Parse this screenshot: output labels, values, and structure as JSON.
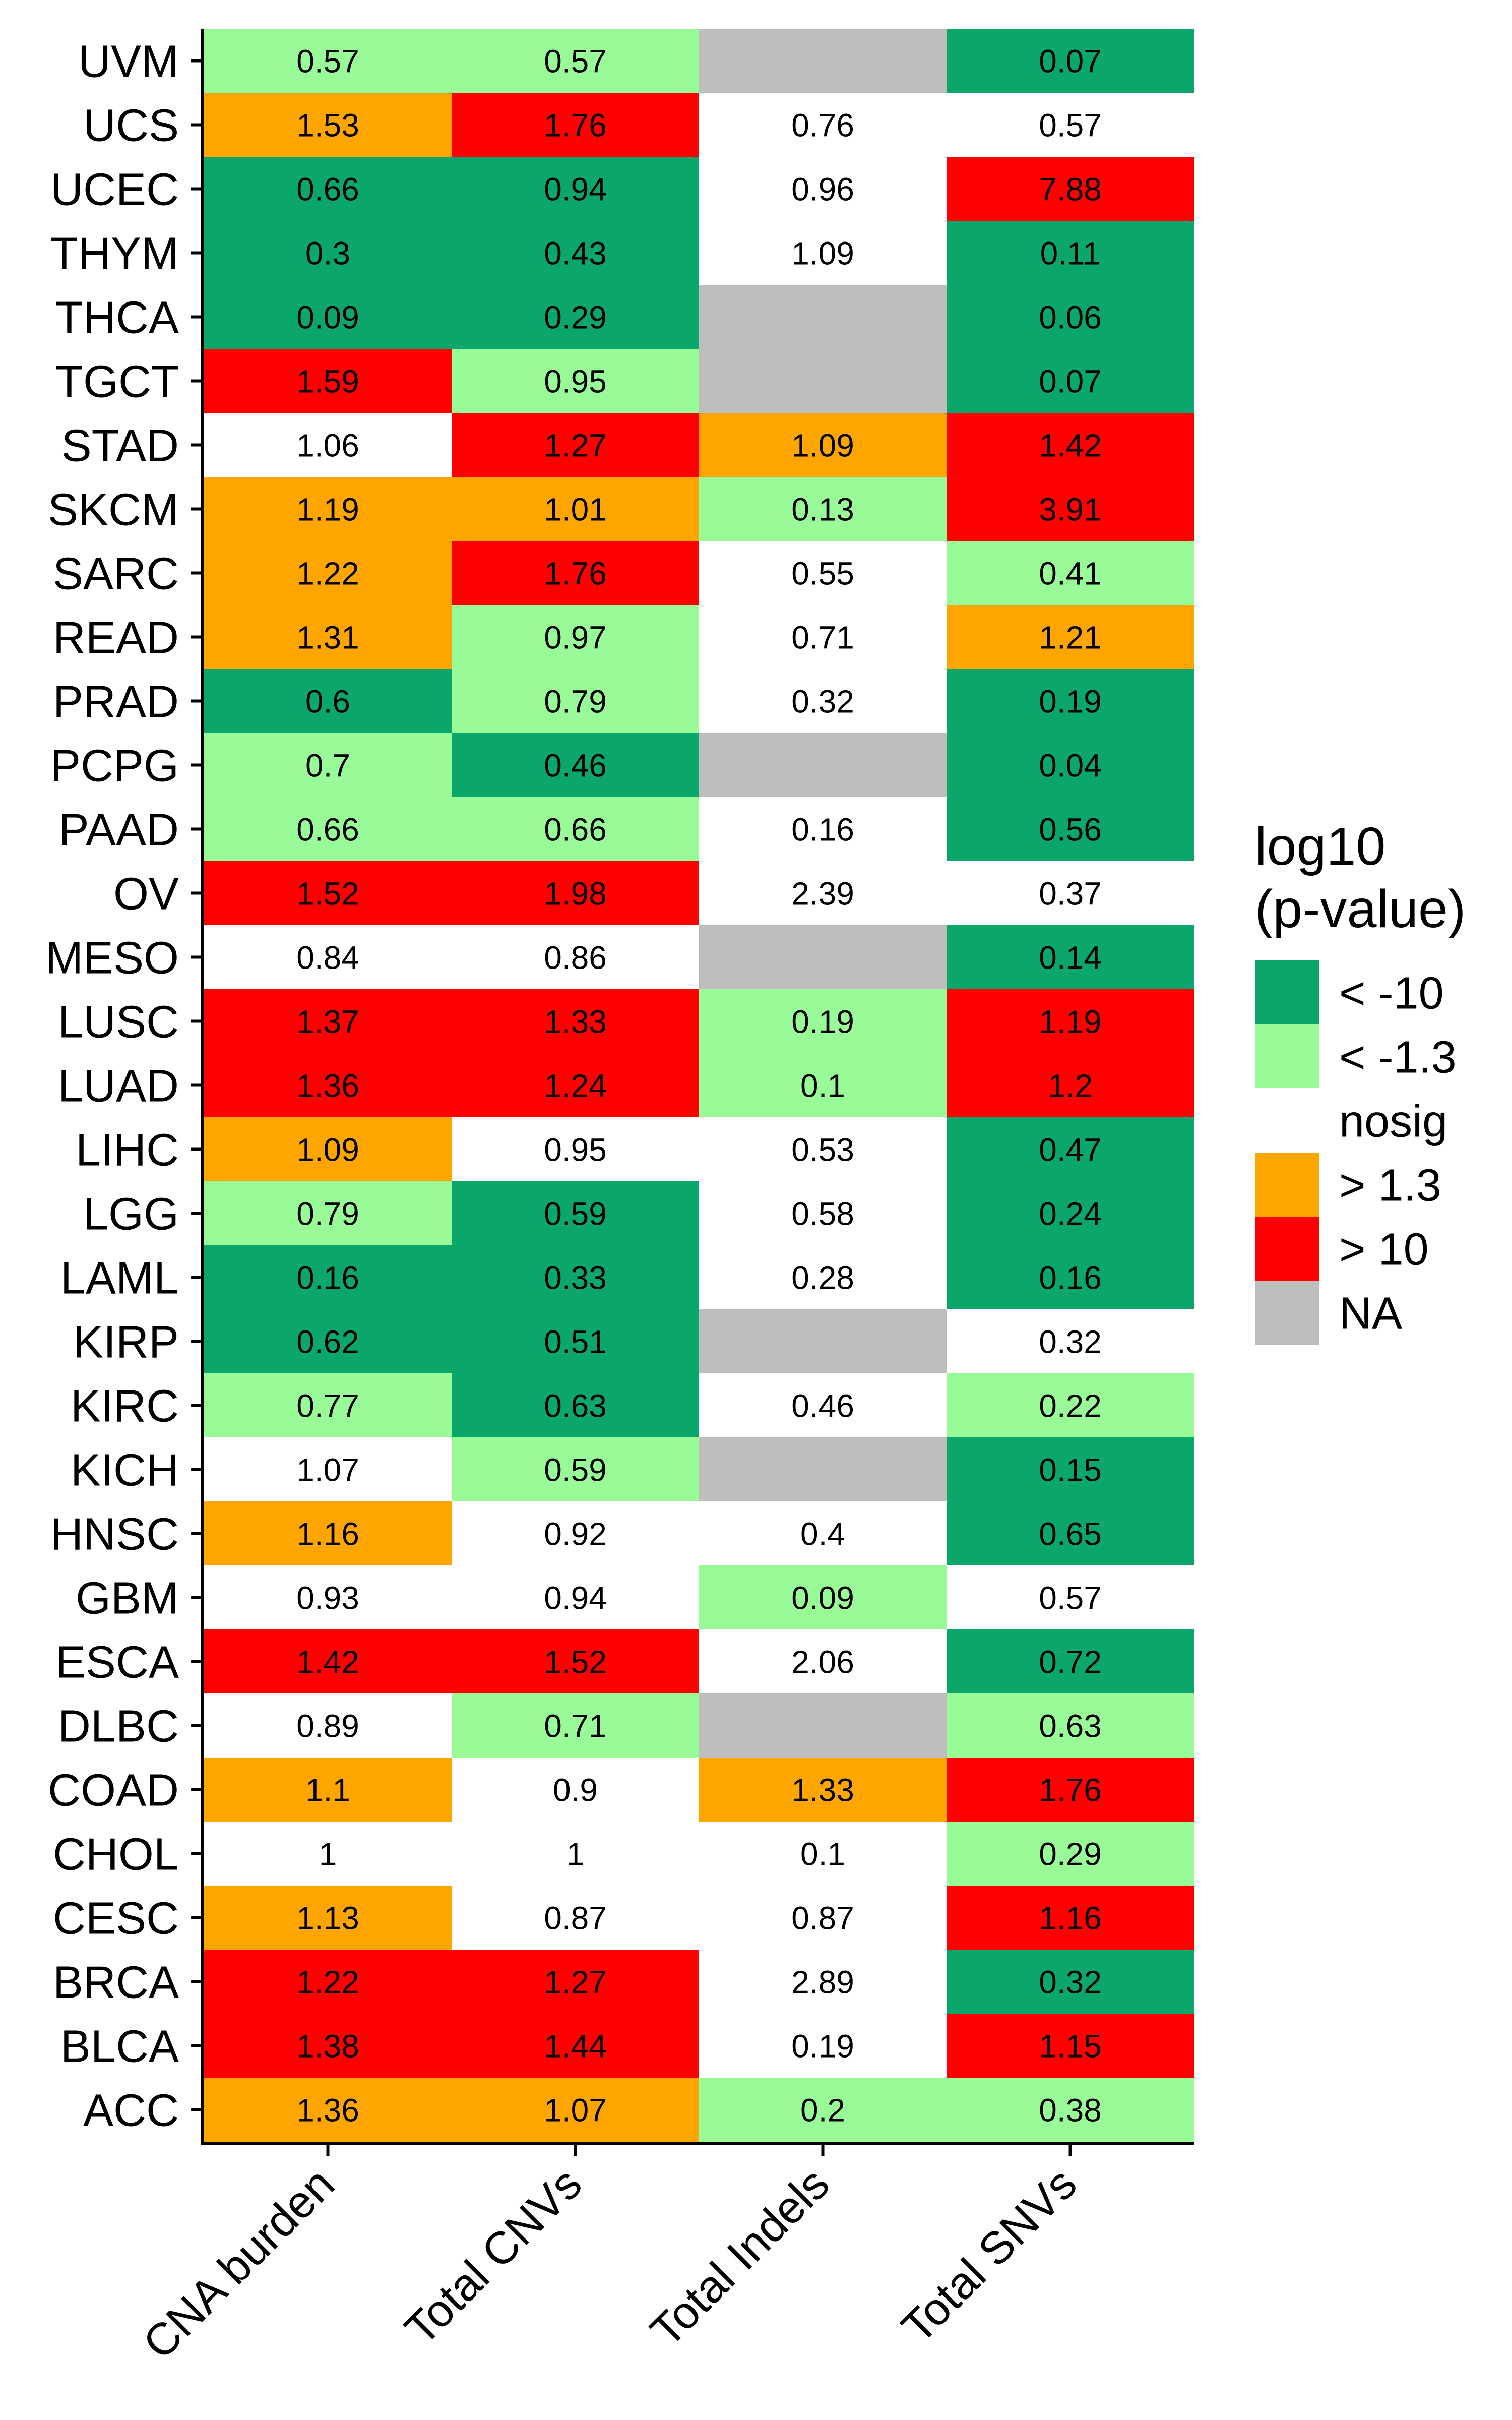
{
  "chart_data": {
    "type": "heatmap",
    "title": "",
    "xlabel": "",
    "ylabel": "",
    "columns": [
      "CNA burden",
      "Total CNVs",
      "Total Indels",
      "Total SNVs"
    ],
    "rows": [
      "UVM",
      "UCS",
      "UCEC",
      "THYM",
      "THCA",
      "TGCT",
      "STAD",
      "SKCM",
      "SARC",
      "READ",
      "PRAD",
      "PCPG",
      "PAAD",
      "OV",
      "MESO",
      "LUSC",
      "LUAD",
      "LIHC",
      "LGG",
      "LAML",
      "KIRP",
      "KIRC",
      "KICH",
      "HNSC",
      "GBM",
      "ESCA",
      "DLBC",
      "COAD",
      "CHOL",
      "CESC",
      "BRCA",
      "BLCA",
      "ACC"
    ],
    "values": [
      [
        "0.57",
        "0.57",
        "",
        "0.07"
      ],
      [
        "1.53",
        "1.76",
        "0.76",
        "0.57"
      ],
      [
        "0.66",
        "0.94",
        "0.96",
        "7.88"
      ],
      [
        "0.3",
        "0.43",
        "1.09",
        "0.11"
      ],
      [
        "0.09",
        "0.29",
        "",
        "0.06"
      ],
      [
        "1.59",
        "0.95",
        "",
        "0.07"
      ],
      [
        "1.06",
        "1.27",
        "1.09",
        "1.42"
      ],
      [
        "1.19",
        "1.01",
        "0.13",
        "3.91"
      ],
      [
        "1.22",
        "1.76",
        "0.55",
        "0.41"
      ],
      [
        "1.31",
        "0.97",
        "0.71",
        "1.21"
      ],
      [
        "0.6",
        "0.79",
        "0.32",
        "0.19"
      ],
      [
        "0.7",
        "0.46",
        "",
        "0.04"
      ],
      [
        "0.66",
        "0.66",
        "0.16",
        "0.56"
      ],
      [
        "1.52",
        "1.98",
        "2.39",
        "0.37"
      ],
      [
        "0.84",
        "0.86",
        "",
        "0.14"
      ],
      [
        "1.37",
        "1.33",
        "0.19",
        "1.19"
      ],
      [
        "1.36",
        "1.24",
        "0.1",
        "1.2"
      ],
      [
        "1.09",
        "0.95",
        "0.53",
        "0.47"
      ],
      [
        "0.79",
        "0.59",
        "0.58",
        "0.24"
      ],
      [
        "0.16",
        "0.33",
        "0.28",
        "0.16"
      ],
      [
        "0.62",
        "0.51",
        "",
        "0.32"
      ],
      [
        "0.77",
        "0.63",
        "0.46",
        "0.22"
      ],
      [
        "1.07",
        "0.59",
        "",
        "0.15"
      ],
      [
        "1.16",
        "0.92",
        "0.4",
        "0.65"
      ],
      [
        "0.93",
        "0.94",
        "0.09",
        "0.57"
      ],
      [
        "1.42",
        "1.52",
        "2.06",
        "0.72"
      ],
      [
        "0.89",
        "0.71",
        "",
        "0.63"
      ],
      [
        "1.1",
        "0.9",
        "1.33",
        "1.76"
      ],
      [
        "1",
        "1",
        "0.1",
        "0.29"
      ],
      [
        "1.13",
        "0.87",
        "0.87",
        "1.16"
      ],
      [
        "1.22",
        "1.27",
        "2.89",
        "0.32"
      ],
      [
        "1.38",
        "1.44",
        "0.19",
        "1.15"
      ],
      [
        "1.36",
        "1.07",
        "0.2",
        "0.38"
      ]
    ],
    "categories_grid": [
      [
        "lt1.3",
        "lt1.3",
        "na",
        "lt10"
      ],
      [
        "gt1.3",
        "gt10",
        "nosig",
        "nosig"
      ],
      [
        "lt10",
        "lt10",
        "nosig",
        "gt10"
      ],
      [
        "lt10",
        "lt10",
        "nosig",
        "lt10"
      ],
      [
        "lt10",
        "lt10",
        "na",
        "lt10"
      ],
      [
        "gt10",
        "lt1.3",
        "na",
        "lt10"
      ],
      [
        "nosig",
        "gt10",
        "gt1.3",
        "gt10"
      ],
      [
        "gt1.3",
        "gt1.3",
        "lt1.3",
        "gt10"
      ],
      [
        "gt1.3",
        "gt10",
        "nosig",
        "lt1.3"
      ],
      [
        "gt1.3",
        "lt1.3",
        "nosig",
        "gt1.3"
      ],
      [
        "lt10",
        "lt1.3",
        "nosig",
        "lt10"
      ],
      [
        "lt1.3",
        "lt10",
        "na",
        "lt10"
      ],
      [
        "lt1.3",
        "lt1.3",
        "nosig",
        "lt10"
      ],
      [
        "gt10",
        "gt10",
        "nosig",
        "nosig"
      ],
      [
        "nosig",
        "nosig",
        "na",
        "lt10"
      ],
      [
        "gt10",
        "gt10",
        "lt1.3",
        "gt10"
      ],
      [
        "gt10",
        "gt10",
        "lt1.3",
        "gt10"
      ],
      [
        "gt1.3",
        "nosig",
        "nosig",
        "lt10"
      ],
      [
        "lt1.3",
        "lt10",
        "nosig",
        "lt10"
      ],
      [
        "lt10",
        "lt10",
        "nosig",
        "lt10"
      ],
      [
        "lt10",
        "lt10",
        "na",
        "nosig"
      ],
      [
        "lt1.3",
        "lt10",
        "nosig",
        "lt1.3"
      ],
      [
        "nosig",
        "lt1.3",
        "na",
        "lt10"
      ],
      [
        "gt1.3",
        "nosig",
        "nosig",
        "lt10"
      ],
      [
        "nosig",
        "nosig",
        "lt1.3",
        "nosig"
      ],
      [
        "gt10",
        "gt10",
        "nosig",
        "lt10"
      ],
      [
        "nosig",
        "lt1.3",
        "na",
        "lt1.3"
      ],
      [
        "gt1.3",
        "nosig",
        "gt1.3",
        "gt10"
      ],
      [
        "nosig",
        "nosig",
        "nosig",
        "lt1.3"
      ],
      [
        "gt1.3",
        "nosig",
        "nosig",
        "gt10"
      ],
      [
        "gt10",
        "gt10",
        "nosig",
        "lt10"
      ],
      [
        "gt10",
        "gt10",
        "nosig",
        "gt10"
      ],
      [
        "gt1.3",
        "gt1.3",
        "lt1.3",
        "lt1.3"
      ]
    ],
    "legend": {
      "title_lines": [
        "log10",
        "(p-value)"
      ],
      "placement": "right",
      "items": [
        {
          "key": "lt10",
          "label": "< -10",
          "color": "#0AA66A"
        },
        {
          "key": "lt1.3",
          "label": "< -1.3",
          "color": "#98FB98"
        },
        {
          "key": "nosig",
          "label": "nosig",
          "color": "#FFFFFF"
        },
        {
          "key": "gt1.3",
          "label": "> 1.3",
          "color": "#FFA500"
        },
        {
          "key": "gt10",
          "label": "> 10",
          "color": "#FF0000"
        },
        {
          "key": "na",
          "label": "NA",
          "color": "#BEBEBE"
        }
      ]
    },
    "grid": false
  }
}
